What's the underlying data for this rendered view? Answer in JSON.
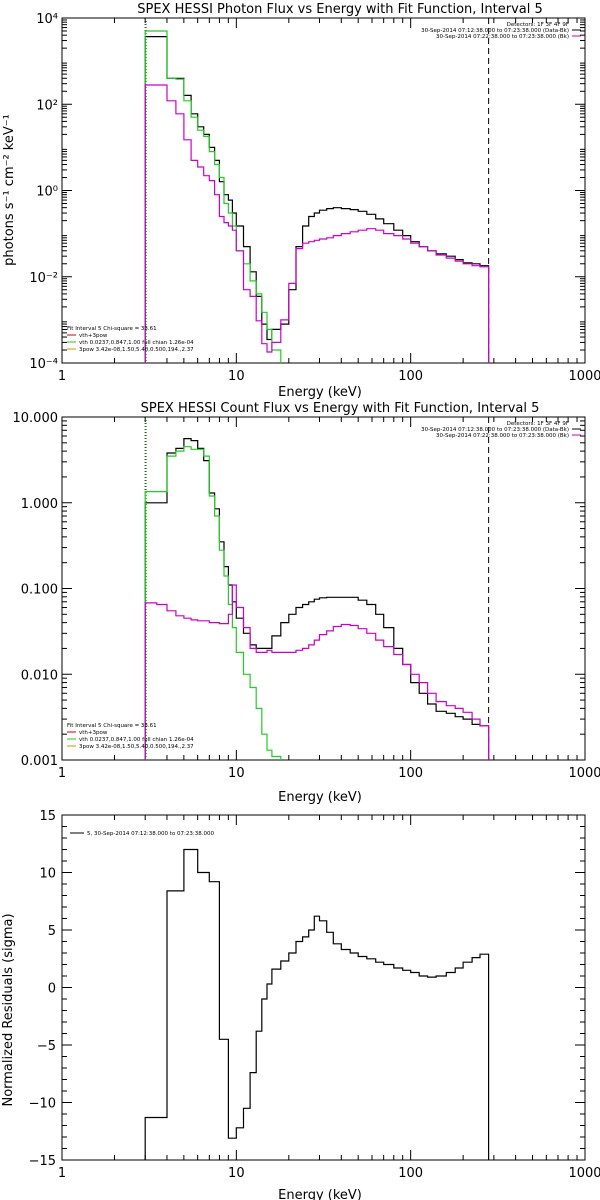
{
  "chart_data": [
    {
      "type": "line",
      "title": "SPEX HESSI Photon Flux vs Energy with Fit Function, Interval 5",
      "xlabel": "Energy (keV)",
      "ylabel": "photons s⁻¹ cm⁻² keV⁻¹",
      "xscale": "log",
      "yscale": "log",
      "xlim": [
        1,
        1000
      ],
      "ylim": [
        0.0001,
        10000
      ],
      "xticks": [
        "1",
        "10",
        "100",
        "1000"
      ],
      "yticks": [
        "10⁻⁴",
        "10⁻²",
        "10⁰",
        "10²",
        "10⁴"
      ],
      "fit_lines": [
        {
          "text": "Fit Interval 5   Chi-square = 33.61",
          "color": ""
        },
        {
          "text": "vth+3pow",
          "color": "#cc0000"
        },
        {
          "text": "vth 0.0237,0.847,1.00  full chian 1.26e-04",
          "color": "#22cc22"
        },
        {
          "text": "3pow 3.42e-08,1.50,5.40,0.500,194.,2.37",
          "color": "#cc9900"
        }
      ],
      "legend_lines": [
        {
          "text": "Detectors: 1F 3F 4F 9F",
          "color": ""
        },
        {
          "text": "30-Sep-2014 07:12:38.000 to 07:23:38.000 (Data-Bk)",
          "color": "#000000"
        },
        {
          "text": "30-Sep-2014 07:22:38.000 to 07:23:38.000 (Bk)",
          "color": "#cc00cc"
        }
      ],
      "vlines": [
        {
          "x": 3,
          "color": "#000000",
          "style": "dotted"
        },
        {
          "x": 3.05,
          "color": "#22cc22",
          "style": "dotted"
        },
        {
          "x": 280,
          "color": "#000000",
          "style": "dashed"
        }
      ],
      "series": [
        {
          "color": "#000000",
          "edges": [
            3.0,
            3.5,
            4.0,
            4.5,
            5.0,
            5.5,
            6.0,
            6.5,
            7.0,
            7.5,
            8.0,
            8.5,
            9.0,
            9.5,
            10.0,
            11.0,
            12.0,
            13.0,
            14.0,
            15.0,
            16.0,
            18.0,
            20.0,
            22.0,
            24.0,
            26.0,
            28.0,
            30.0,
            33.0,
            36.0,
            40.0,
            45.0,
            50.0,
            56.0,
            63.0,
            70.0,
            80.0,
            90.0,
            100.0,
            112.0,
            125.0,
            140.0,
            160.0,
            180.0,
            200.0,
            225.0,
            250.0,
            280.0
          ],
          "values": [
            3700,
            3700,
            400,
            400,
            160,
            60,
            30,
            20,
            10,
            5,
            1.6,
            0.8,
            0.6,
            0.3,
            0.15,
            0.05,
            0.013,
            0.0035,
            0.0008,
            0.00035,
            0.0006,
            0.0008,
            0.005,
            0.05,
            0.15,
            0.25,
            0.3,
            0.35,
            0.38,
            0.4,
            0.38,
            0.36,
            0.33,
            0.28,
            0.22,
            0.17,
            0.12,
            0.09,
            0.065,
            0.05,
            0.04,
            0.034,
            0.03,
            0.025,
            0.021,
            0.02,
            0.018
          ],
          "tail_end": 0.0001
        },
        {
          "color": "#22cc22",
          "edges": [
            3.0,
            3.5,
            4.0,
            4.5,
            5.0,
            5.5,
            6.0,
            6.5,
            7.0,
            7.5,
            8.0,
            8.5,
            9.0,
            9.5,
            10.0,
            11.0,
            12.0,
            13.0,
            14.0,
            15.0,
            16.0,
            18.0
          ],
          "values": [
            5000,
            5000,
            400,
            380,
            120,
            50,
            25,
            18,
            8,
            4,
            2,
            0.5,
            0.3,
            0.15,
            0.04,
            0.02,
            0.008,
            0.004,
            0.0015,
            0.0006,
            0.0002
          ],
          "tail_end": 0.0001
        },
        {
          "color": "#cc00cc",
          "edges": [
            3.0,
            3.5,
            4.0,
            4.5,
            5.0,
            5.5,
            6.0,
            6.5,
            7.0,
            7.5,
            8.0,
            8.5,
            9.0,
            9.5,
            10.0,
            11.0,
            12.0,
            13.0,
            14.0,
            15.0,
            16.0,
            18.0,
            20.0,
            22.0,
            24.0,
            26.0,
            28.0,
            30.0,
            33.0,
            36.0,
            40.0,
            45.0,
            50.0,
            56.0,
            63.0,
            70.0,
            80.0,
            90.0,
            100.0,
            112.0,
            125.0,
            140.0,
            160.0,
            180.0,
            200.0,
            225.0,
            250.0,
            280.0
          ],
          "values": [
            280,
            280,
            120,
            60,
            15,
            5,
            3.5,
            2.2,
            1.7,
            0.8,
            0.25,
            0.18,
            0.15,
            0.12,
            0.04,
            0.005,
            0.0035,
            0.00095,
            0.00028,
            0.00018,
            0.0003,
            0.001,
            0.007,
            0.045,
            0.06,
            0.065,
            0.07,
            0.075,
            0.08,
            0.09,
            0.1,
            0.11,
            0.12,
            0.13,
            0.12,
            0.1,
            0.09,
            0.075,
            0.06,
            0.05,
            0.04,
            0.032,
            0.027,
            0.023,
            0.02,
            0.018,
            0.017
          ],
          "tail_end": 0.0001
        }
      ]
    },
    {
      "type": "line",
      "title": "SPEX HESSI Count Flux vs Energy with Fit Function, Interval 5",
      "xlabel": "Energy (keV)",
      "ylabel": "",
      "xscale": "log",
      "yscale": "log",
      "xlim": [
        1,
        1000
      ],
      "ylim": [
        0.001,
        10
      ],
      "xticks": [
        "1",
        "10",
        "100",
        "1000"
      ],
      "yticks": [
        "0.001",
        "0.010",
        "0.100",
        "1.000",
        "10.000"
      ],
      "fit_lines": [
        {
          "text": "Fit Interval 5   Chi-square = 33.61",
          "color": ""
        },
        {
          "text": "vth+3pow",
          "color": "#cc0000"
        },
        {
          "text": "vth 0.0237,0.847,1.00  full chian 1.26e-04",
          "color": "#22cc22"
        },
        {
          "text": "3pow 3.42e-08,1.50,5.40,0.500,194.,2.37",
          "color": "#cc9900"
        }
      ],
      "legend_lines": [
        {
          "text": "Detectors: 1F 3F 4F 9F",
          "color": ""
        },
        {
          "text": "30-Sep-2014 07:12:38.000 to 07:23:38.000 (Data-Bk)",
          "color": "#000000"
        },
        {
          "text": "30-Sep-2014 07:22:38.000 to 07:23:38.000 (Bk)",
          "color": "#cc00cc"
        }
      ],
      "vlines": [
        {
          "x": 3,
          "color": "#000000",
          "style": "dotted"
        },
        {
          "x": 3.05,
          "color": "#22cc22",
          "style": "dotted"
        },
        {
          "x": 280,
          "color": "#000000",
          "style": "dashed"
        }
      ],
      "series": [
        {
          "color": "#000000",
          "edges": [
            3.0,
            3.5,
            4.0,
            4.5,
            5.0,
            5.5,
            6.0,
            6.5,
            7.0,
            7.5,
            8.0,
            8.5,
            9.0,
            9.5,
            10.0,
            11.0,
            12.0,
            13.0,
            14.0,
            15.0,
            16.0,
            18.0,
            20.0,
            22.0,
            24.0,
            26.0,
            28.0,
            30.0,
            33.0,
            36.0,
            40.0,
            45.0,
            50.0,
            56.0,
            63.0,
            70.0,
            80.0,
            90.0,
            100.0,
            112.0,
            125.0,
            140.0,
            160.0,
            180.0,
            200.0,
            225.0,
            250.0,
            280.0
          ],
          "values": [
            1.0,
            1.0,
            3.8,
            4.3,
            5.6,
            5.3,
            4.3,
            3.1,
            1.3,
            0.85,
            0.35,
            0.18,
            0.11,
            0.07,
            0.045,
            0.03,
            0.022,
            0.02,
            0.02,
            0.02,
            0.028,
            0.04,
            0.05,
            0.06,
            0.065,
            0.07,
            0.075,
            0.078,
            0.079,
            0.079,
            0.079,
            0.079,
            0.073,
            0.065,
            0.05,
            0.035,
            0.02,
            0.013,
            0.008,
            0.006,
            0.0045,
            0.0037,
            0.0035,
            0.0032,
            0.003,
            0.0026,
            0.0025
          ],
          "tail_end": 0.001
        },
        {
          "color": "#22cc22",
          "edges": [
            3.0,
            3.5,
            4.0,
            4.5,
            5.0,
            5.5,
            6.0,
            6.5,
            7.0,
            7.5,
            8.0,
            8.5,
            9.0,
            9.5,
            10.0,
            11.0,
            12.0,
            13.0,
            14.0,
            15.0,
            16.0,
            18.0
          ],
          "values": [
            1.35,
            1.35,
            3.5,
            4.0,
            4.5,
            4.2,
            4.2,
            3.5,
            1.2,
            0.7,
            0.28,
            0.14,
            0.065,
            0.035,
            0.018,
            0.01,
            0.007,
            0.004,
            0.002,
            0.0013,
            0.0011
          ],
          "tail_end": 0.001
        },
        {
          "color": "#cc00cc",
          "edges": [
            3.0,
            3.5,
            4.0,
            4.5,
            5.0,
            5.5,
            6.0,
            6.5,
            7.0,
            7.5,
            8.0,
            8.5,
            9.0,
            9.5,
            10.0,
            11.0,
            12.0,
            13.0,
            14.0,
            15.0,
            16.0,
            18.0,
            20.0,
            22.0,
            24.0,
            26.0,
            28.0,
            30.0,
            33.0,
            36.0,
            40.0,
            45.0,
            50.0,
            56.0,
            63.0,
            70.0,
            80.0,
            90.0,
            100.0,
            112.0,
            125.0,
            140.0,
            160.0,
            180.0,
            200.0,
            225.0,
            250.0,
            280.0
          ],
          "values": [
            0.068,
            0.065,
            0.055,
            0.048,
            0.045,
            0.043,
            0.042,
            0.042,
            0.04,
            0.04,
            0.039,
            0.039,
            0.05,
            0.11,
            0.06,
            0.035,
            0.02,
            0.018,
            0.018,
            0.019,
            0.018,
            0.018,
            0.018,
            0.019,
            0.02,
            0.022,
            0.025,
            0.029,
            0.032,
            0.036,
            0.038,
            0.037,
            0.034,
            0.03,
            0.025,
            0.021,
            0.017,
            0.013,
            0.01,
            0.008,
            0.006,
            0.0048,
            0.0043,
            0.004,
            0.0036,
            0.003,
            0.0025
          ],
          "tail_end": 0.001
        }
      ]
    },
    {
      "type": "line",
      "title": "",
      "xlabel": "Energy (keV)",
      "ylabel": "Normalized Residuals (sigma)",
      "xscale": "log",
      "yscale": "linear",
      "xlim": [
        1,
        1000
      ],
      "ylim": [
        -15,
        15
      ],
      "xticks": [
        "1",
        "10",
        "100",
        "1000"
      ],
      "yticks": [
        "−15",
        "−10",
        "−5",
        "0",
        "5",
        "10",
        "15"
      ],
      "legend_lines": [
        {
          "text": "5, 30-Sep-2014 07:12:38.000 to 07:23:38.000",
          "color": "#000000"
        }
      ],
      "series": [
        {
          "color": "#000000",
          "edges": [
            3.0,
            4.0,
            5.0,
            6.0,
            7.0,
            8.0,
            9.0,
            10.0,
            11.0,
            12.0,
            13.0,
            14.0,
            15.0,
            16.0,
            18.0,
            20.0,
            22.0,
            24.0,
            26.0,
            28.0,
            30.0,
            33.0,
            36.0,
            40.0,
            45.0,
            50.0,
            56.0,
            63.0,
            70.0,
            80.0,
            90.0,
            100.0,
            112.0,
            125.0,
            140.0,
            160.0,
            180.0,
            200.0,
            225.0,
            250.0,
            280.0
          ],
          "values": [
            -11.3,
            8.4,
            12.0,
            10.0,
            9.2,
            -4.5,
            -13.1,
            -12.2,
            -10.5,
            -7.4,
            -3.8,
            -1.0,
            0.3,
            1.6,
            2.3,
            3.0,
            4.0,
            4.4,
            5.0,
            6.2,
            5.8,
            4.8,
            3.8,
            3.3,
            3.0,
            2.7,
            2.5,
            2.2,
            2.0,
            1.7,
            1.5,
            1.3,
            1.0,
            0.9,
            1.0,
            1.3,
            1.7,
            2.2,
            2.6,
            2.9
          ],
          "tail_end": -15
        }
      ]
    }
  ]
}
